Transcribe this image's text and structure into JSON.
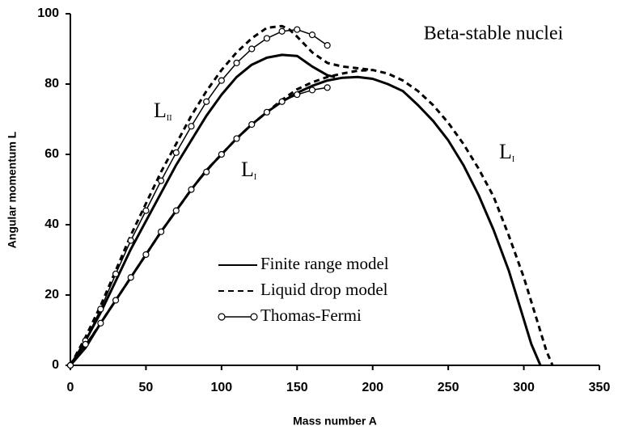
{
  "chart_data": {
    "type": "line",
    "title": "Beta-stable nuclei",
    "xlabel": "Mass number  A",
    "ylabel": "Angular momentum  L",
    "xlim": [
      0,
      350
    ],
    "xticks": [
      0,
      50,
      100,
      150,
      200,
      250,
      300,
      350
    ],
    "ylim": [
      0,
      100
    ],
    "yticks": [
      0,
      20,
      40,
      60,
      80,
      100
    ],
    "annotations": [
      {
        "text": "L",
        "sub": "II"
      },
      {
        "text": "L",
        "sub": "I"
      },
      {
        "text": "L",
        "sub": "I"
      }
    ],
    "series": [
      {
        "name": "Finite range model",
        "color": "#000000",
        "style": "solid",
        "branches": [
          {
            "x": [
              0,
              10,
              20,
              30,
              40,
              50,
              60,
              70,
              80,
              90,
              100,
              110,
              120,
              130,
              140,
              150,
              160,
              170,
              175
            ],
            "values": [
              0,
              7,
              15,
              24,
              33,
              41,
              49,
              57,
              64,
              71,
              77,
              82,
              85.5,
              87.5,
              88.3,
              88,
              85,
              82.5,
              82
            ]
          },
          {
            "x": [
              0,
              10,
              20,
              30,
              40,
              50,
              60,
              70,
              80,
              90,
              100,
              110,
              120,
              130,
              140,
              150,
              160,
              170,
              180,
              190,
              200,
              210,
              220,
              230,
              240,
              250,
              260,
              270,
              280,
              290,
              300,
              305,
              311
            ],
            "values": [
              0,
              5,
              12,
              18.5,
              25,
              31.5,
              38,
              44,
              50,
              55.5,
              60,
              64.5,
              68.5,
              72,
              75,
              77.5,
              79.5,
              81,
              81.8,
              82,
              81.5,
              80,
              78,
              74,
              69.5,
              64,
              57,
              48.5,
              38.5,
              27,
              13,
              6,
              0
            ]
          }
        ]
      },
      {
        "name": "Liquid drop model",
        "color": "#000000",
        "style": "dashed",
        "branches": [
          {
            "x": [
              0,
              10,
              20,
              30,
              40,
              50,
              60,
              70,
              80,
              90,
              100,
              110,
              120,
              130,
              140,
              145,
              150,
              160,
              170,
              180,
              190,
              200
            ],
            "values": [
              0,
              8,
              17,
              27,
              37,
              46,
              55,
              63,
              71,
              78,
              84,
              89,
              93,
              96,
              96.5,
              95.5,
              93.5,
              89,
              86,
              85,
              84.5,
              84
            ]
          },
          {
            "x": [
              0,
              10,
              20,
              30,
              40,
              50,
              60,
              70,
              80,
              90,
              100,
              110,
              120,
              130,
              140,
              150,
              160,
              170,
              180,
              190,
              200,
              210,
              220,
              230,
              240,
              250,
              260,
              270,
              280,
              290,
              300,
              310,
              315,
              319
            ],
            "values": [
              0,
              5.5,
              12,
              18.5,
              25,
              31.5,
              38,
              44,
              50,
              55.5,
              60,
              64.5,
              68.5,
              72,
              75.5,
              78.5,
              80.5,
              82,
              83,
              83.8,
              84,
              83,
              81,
              78,
              74,
              69,
              63,
              56,
              48,
              37,
              25,
              11,
              4,
              0
            ]
          }
        ]
      },
      {
        "name": "Thomas-Fermi",
        "color": "#000000",
        "style": "markers",
        "branches": [
          {
            "x": [
              0,
              10,
              20,
              30,
              40,
              50,
              60,
              70,
              80,
              90,
              100,
              110,
              120,
              130,
              140,
              150,
              160,
              170
            ],
            "values": [
              0,
              7,
              16,
              26,
              35.5,
              44,
              52.5,
              60.5,
              68,
              75,
              81,
              86,
              90,
              93,
              95,
              95.5,
              94,
              91
            ]
          },
          {
            "x": [
              0,
              10,
              20,
              30,
              40,
              50,
              60,
              70,
              80,
              90,
              100,
              110,
              120,
              130,
              140,
              150,
              160,
              170
            ],
            "values": [
              0,
              6,
              12,
              18.5,
              25,
              31.5,
              38,
              44,
              50,
              55,
              60,
              64.5,
              68.5,
              72,
              75,
              77,
              78.3,
              79
            ]
          }
        ]
      }
    ]
  }
}
